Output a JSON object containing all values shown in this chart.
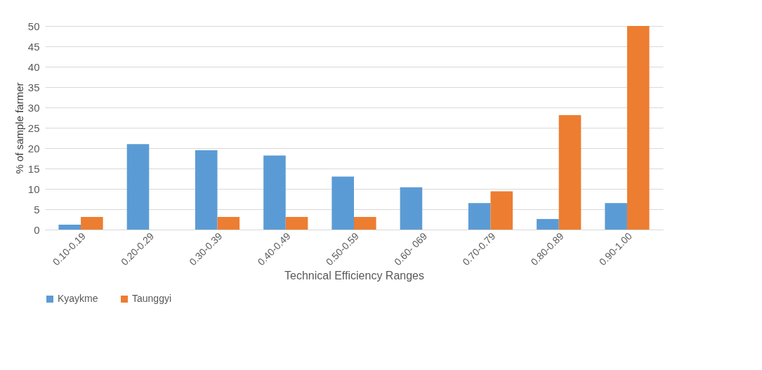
{
  "chart_data": {
    "type": "bar",
    "xlabel": "Technical Efficiency Ranges",
    "ylabel": "% of sample farmer",
    "categories": [
      "0.10-0.19",
      "0.20-0.29",
      "0.30-0.39",
      "0.40-0.49",
      "0.50-0.59",
      "0.60- 069",
      "0.70-0.79",
      "0.80-0.89",
      "0.90-1.00"
    ],
    "series": [
      {
        "name": "Kyaykme",
        "color": "#5b9bd5",
        "values": [
          1.2,
          21,
          19.5,
          18.2,
          13,
          10.4,
          6.5,
          2.6,
          6.5
        ]
      },
      {
        "name": "Taunggyi",
        "color": "#ed7d31",
        "values": [
          3.1,
          0,
          3.1,
          3.1,
          3.1,
          0,
          9.4,
          28.1,
          50
        ]
      }
    ],
    "ylim": [
      0,
      50
    ],
    "yticks": [
      0,
      5,
      10,
      15,
      20,
      25,
      30,
      35,
      40,
      45,
      50
    ],
    "grid": "y",
    "legend": "bottom"
  }
}
